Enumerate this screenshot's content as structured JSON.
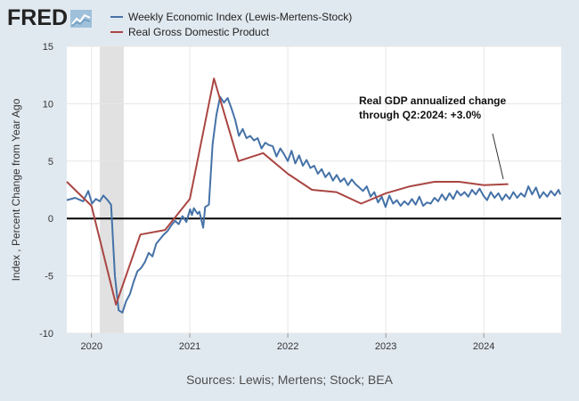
{
  "header": {
    "logo_text": "FRED",
    "logo_icon": "fred-chart-icon"
  },
  "legend": [
    {
      "label": "Weekly Economic Index (Lewis-Mertens-Stock)",
      "color": "#4572a7"
    },
    {
      "label": "Real Gross Domestic Product",
      "color": "#aa4643"
    }
  ],
  "source": "Sources: Lewis; Mertens; Stock; BEA",
  "chart_data": {
    "type": "line",
    "ylabel": "Index , Percent Change from Year Ago",
    "ylim": [
      -10,
      15
    ],
    "xlim": [
      "2019-10-01",
      "2024-10-15"
    ],
    "yticks": [
      15,
      10,
      5,
      0,
      -5,
      -10
    ],
    "xticks": [
      {
        "date": "2020-01-01",
        "label": "2020"
      },
      {
        "date": "2021-01-01",
        "label": "2021"
      },
      {
        "date": "2022-01-01",
        "label": "2022"
      },
      {
        "date": "2023-01-01",
        "label": "2023"
      },
      {
        "date": "2024-01-01",
        "label": "2024"
      }
    ],
    "recession": {
      "start": "2020-02-01",
      "end": "2020-04-30"
    },
    "grid": true,
    "zero_line": true,
    "annotation": {
      "lines": [
        "Real GDP annualized change",
        "through Q2:2024: +3.0%"
      ]
    },
    "series": [
      {
        "name": "Weekly Economic Index (Lewis-Mertens-Stock)",
        "color": "#4572a7",
        "points": [
          [
            "2019-10-01",
            1.6
          ],
          [
            "2019-11-01",
            1.8
          ],
          [
            "2019-12-01",
            1.5
          ],
          [
            "2019-12-20",
            2.4
          ],
          [
            "2020-01-03",
            1.3
          ],
          [
            "2020-01-17",
            1.7
          ],
          [
            "2020-02-01",
            1.5
          ],
          [
            "2020-02-14",
            2.0
          ],
          [
            "2020-03-01",
            1.6
          ],
          [
            "2020-03-14",
            1.2
          ],
          [
            "2020-03-28",
            -5.0
          ],
          [
            "2020-04-11",
            -8.0
          ],
          [
            "2020-04-25",
            -8.2
          ],
          [
            "2020-05-09",
            -7.2
          ],
          [
            "2020-05-23",
            -6.6
          ],
          [
            "2020-06-06",
            -5.5
          ],
          [
            "2020-06-20",
            -4.6
          ],
          [
            "2020-07-04",
            -4.3
          ],
          [
            "2020-07-18",
            -3.8
          ],
          [
            "2020-08-01",
            -3.0
          ],
          [
            "2020-08-15",
            -3.3
          ],
          [
            "2020-08-29",
            -2.2
          ],
          [
            "2020-09-12",
            -1.8
          ],
          [
            "2020-09-26",
            -1.4
          ],
          [
            "2020-10-10",
            -1.1
          ],
          [
            "2020-10-24",
            -0.6
          ],
          [
            "2020-11-07",
            -0.2
          ],
          [
            "2020-11-21",
            -0.5
          ],
          [
            "2020-12-05",
            0.2
          ],
          [
            "2020-12-19",
            -0.3
          ],
          [
            "2021-01-02",
            0.8
          ],
          [
            "2021-01-09",
            0.3
          ],
          [
            "2021-01-16",
            0.9
          ],
          [
            "2021-01-30",
            0.4
          ],
          [
            "2021-02-06",
            0.6
          ],
          [
            "2021-02-20",
            -0.8
          ],
          [
            "2021-02-27",
            1.0
          ],
          [
            "2021-03-13",
            1.2
          ],
          [
            "2021-03-27",
            6.5
          ],
          [
            "2021-04-10",
            9.0
          ],
          [
            "2021-04-24",
            10.6
          ],
          [
            "2021-05-08",
            10.1
          ],
          [
            "2021-05-22",
            10.5
          ],
          [
            "2021-06-05",
            9.6
          ],
          [
            "2021-06-19",
            8.6
          ],
          [
            "2021-07-03",
            7.2
          ],
          [
            "2021-07-17",
            7.8
          ],
          [
            "2021-07-31",
            7.0
          ],
          [
            "2021-08-14",
            7.2
          ],
          [
            "2021-08-28",
            6.8
          ],
          [
            "2021-09-11",
            7.0
          ],
          [
            "2021-09-25",
            6.1
          ],
          [
            "2021-10-09",
            6.6
          ],
          [
            "2021-10-23",
            6.4
          ],
          [
            "2021-11-06",
            6.3
          ],
          [
            "2021-11-20",
            5.4
          ],
          [
            "2021-12-04",
            6.1
          ],
          [
            "2021-12-18",
            5.6
          ],
          [
            "2022-01-01",
            5.0
          ],
          [
            "2022-01-15",
            5.9
          ],
          [
            "2022-01-29",
            4.8
          ],
          [
            "2022-02-12",
            5.5
          ],
          [
            "2022-02-26",
            4.6
          ],
          [
            "2022-03-12",
            5.1
          ],
          [
            "2022-03-26",
            4.4
          ],
          [
            "2022-04-09",
            4.6
          ],
          [
            "2022-04-23",
            3.9
          ],
          [
            "2022-05-07",
            4.3
          ],
          [
            "2022-05-21",
            3.6
          ],
          [
            "2022-06-04",
            4.0
          ],
          [
            "2022-06-18",
            3.3
          ],
          [
            "2022-07-02",
            3.8
          ],
          [
            "2022-07-16",
            3.2
          ],
          [
            "2022-07-30",
            3.5
          ],
          [
            "2022-08-13",
            2.9
          ],
          [
            "2022-08-27",
            3.4
          ],
          [
            "2022-09-10",
            3.0
          ],
          [
            "2022-09-24",
            2.7
          ],
          [
            "2022-10-08",
            2.4
          ],
          [
            "2022-10-22",
            2.8
          ],
          [
            "2022-11-05",
            1.9
          ],
          [
            "2022-11-19",
            2.3
          ],
          [
            "2022-12-03",
            1.4
          ],
          [
            "2022-12-17",
            1.9
          ],
          [
            "2022-12-31",
            1.0
          ],
          [
            "2023-01-14",
            2.0
          ],
          [
            "2023-01-28",
            1.3
          ],
          [
            "2023-02-11",
            1.6
          ],
          [
            "2023-02-25",
            1.1
          ],
          [
            "2023-03-11",
            1.5
          ],
          [
            "2023-03-25",
            1.2
          ],
          [
            "2023-04-08",
            1.7
          ],
          [
            "2023-04-22",
            1.2
          ],
          [
            "2023-05-06",
            1.9
          ],
          [
            "2023-05-20",
            1.1
          ],
          [
            "2023-06-03",
            1.4
          ],
          [
            "2023-06-17",
            1.3
          ],
          [
            "2023-07-01",
            1.8
          ],
          [
            "2023-07-15",
            1.5
          ],
          [
            "2023-07-29",
            2.1
          ],
          [
            "2023-08-12",
            1.6
          ],
          [
            "2023-08-26",
            2.2
          ],
          [
            "2023-09-09",
            1.7
          ],
          [
            "2023-09-23",
            2.4
          ],
          [
            "2023-10-07",
            2.0
          ],
          [
            "2023-10-21",
            2.3
          ],
          [
            "2023-11-04",
            1.9
          ],
          [
            "2023-11-18",
            2.5
          ],
          [
            "2023-12-02",
            2.1
          ],
          [
            "2023-12-16",
            2.6
          ],
          [
            "2023-12-30",
            2.0
          ],
          [
            "2024-01-13",
            1.6
          ],
          [
            "2024-01-27",
            2.3
          ],
          [
            "2024-02-10",
            1.8
          ],
          [
            "2024-02-24",
            2.2
          ],
          [
            "2024-03-09",
            1.6
          ],
          [
            "2024-03-23",
            2.1
          ],
          [
            "2024-04-06",
            1.7
          ],
          [
            "2024-04-20",
            2.3
          ],
          [
            "2024-05-04",
            1.8
          ],
          [
            "2024-05-18",
            2.2
          ],
          [
            "2024-06-01",
            1.9
          ],
          [
            "2024-06-15",
            2.8
          ],
          [
            "2024-06-29",
            2.1
          ],
          [
            "2024-07-13",
            2.7
          ],
          [
            "2024-07-27",
            1.8
          ],
          [
            "2024-08-10",
            2.3
          ],
          [
            "2024-08-24",
            1.9
          ],
          [
            "2024-09-07",
            2.4
          ],
          [
            "2024-09-21",
            2.0
          ],
          [
            "2024-10-05",
            2.5
          ],
          [
            "2024-10-12",
            2.1
          ]
        ]
      },
      {
        "name": "Real Gross Domestic Product",
        "color": "#aa4643",
        "points": [
          [
            "2019-10-01",
            3.2
          ],
          [
            "2020-01-01",
            1.1
          ],
          [
            "2020-04-01",
            -7.5
          ],
          [
            "2020-07-01",
            -1.4
          ],
          [
            "2020-10-01",
            -1.0
          ],
          [
            "2021-01-01",
            1.7
          ],
          [
            "2021-04-01",
            12.2
          ],
          [
            "2021-07-01",
            5.0
          ],
          [
            "2021-10-01",
            5.7
          ],
          [
            "2022-01-01",
            3.9
          ],
          [
            "2022-04-01",
            2.5
          ],
          [
            "2022-07-01",
            2.3
          ],
          [
            "2022-10-01",
            1.3
          ],
          [
            "2023-01-01",
            2.2
          ],
          [
            "2023-04-01",
            2.8
          ],
          [
            "2023-07-01",
            3.2
          ],
          [
            "2023-10-01",
            3.2
          ],
          [
            "2024-01-01",
            2.9
          ],
          [
            "2024-04-01",
            3.0
          ]
        ]
      }
    ]
  }
}
